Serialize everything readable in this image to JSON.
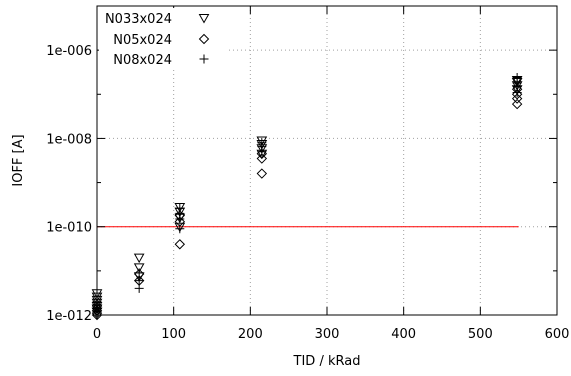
{
  "chart_data": {
    "type": "scatter",
    "xlabel": "TID / kRad",
    "ylabel": "IOFF [A]",
    "xlim": [
      0,
      600
    ],
    "ylim": [
      1e-12,
      1e-05
    ],
    "y_scale": "log",
    "grid": true,
    "legend_position": "top-left",
    "x_ticks": [
      {
        "value": 0,
        "label": "0"
      },
      {
        "value": 100,
        "label": "100"
      },
      {
        "value": 200,
        "label": "200"
      },
      {
        "value": 300,
        "label": "300"
      },
      {
        "value": 400,
        "label": "400"
      },
      {
        "value": 500,
        "label": "500"
      },
      {
        "value": 600,
        "label": "600"
      }
    ],
    "y_ticks": [
      {
        "value": 1e-12,
        "label": "1e-012"
      },
      {
        "value": 1e-10,
        "label": "1e-010"
      },
      {
        "value": 1e-08,
        "label": "1e-008"
      },
      {
        "value": 1e-06,
        "label": "1e-006"
      }
    ],
    "reference_line": {
      "y": 1e-10,
      "x_start": 0,
      "x_end": 550,
      "color": "#ff0000"
    },
    "series": [
      {
        "name": "N033x024",
        "marker": "triangle-down",
        "points": [
          [
            0,
            1.2e-12
          ],
          [
            0,
            1.4e-12
          ],
          [
            0,
            1.6e-12
          ],
          [
            0,
            1.9e-12
          ],
          [
            0,
            2.2e-12
          ],
          [
            0,
            2.6e-12
          ],
          [
            0,
            3.1e-12
          ],
          [
            55,
            7.5e-12
          ],
          [
            55,
            1.2e-11
          ],
          [
            55,
            2e-11
          ],
          [
            108,
            1e-10
          ],
          [
            108,
            1.6e-10
          ],
          [
            108,
            2.2e-10
          ],
          [
            108,
            2.8e-10
          ],
          [
            215,
            4.5e-09
          ],
          [
            215,
            6e-09
          ],
          [
            215,
            7.5e-09
          ],
          [
            215,
            9e-09
          ],
          [
            548,
            1.3e-07
          ],
          [
            548,
            1.6e-07
          ],
          [
            548,
            1.9e-07
          ],
          [
            548,
            2.1e-07
          ]
        ]
      },
      {
        "name": "N05x024",
        "marker": "diamond",
        "points": [
          [
            0,
            1e-12
          ],
          [
            0,
            1.1e-12
          ],
          [
            0,
            1.25e-12
          ],
          [
            0,
            1.4e-12
          ],
          [
            0,
            1.6e-12
          ],
          [
            55,
            6e-12
          ],
          [
            55,
            8.5e-12
          ],
          [
            108,
            4e-11
          ],
          [
            108,
            1.3e-10
          ],
          [
            108,
            1.8e-10
          ],
          [
            215,
            1.6e-09
          ],
          [
            215,
            3.5e-09
          ],
          [
            215,
            4.5e-09
          ],
          [
            548,
            6e-08
          ],
          [
            548,
            8e-08
          ],
          [
            548,
            1e-07
          ],
          [
            548,
            1.3e-07
          ]
        ]
      },
      {
        "name": "N08x024",
        "marker": "plus",
        "points": [
          [
            0,
            1e-12
          ],
          [
            0,
            1.2e-12
          ],
          [
            0,
            1.4e-12
          ],
          [
            0,
            1.7e-12
          ],
          [
            0,
            2e-12
          ],
          [
            55,
            4e-12
          ],
          [
            55,
            6e-12
          ],
          [
            55,
            9e-12
          ],
          [
            108,
            9e-11
          ],
          [
            108,
            1.5e-10
          ],
          [
            108,
            2e-10
          ],
          [
            108,
            2.6e-10
          ],
          [
            215,
            5e-09
          ],
          [
            215,
            6.5e-09
          ],
          [
            215,
            8e-09
          ],
          [
            548,
            1.1e-07
          ],
          [
            548,
            1.5e-07
          ],
          [
            548,
            1.8e-07
          ],
          [
            548,
            2.4e-07
          ]
        ]
      }
    ]
  }
}
